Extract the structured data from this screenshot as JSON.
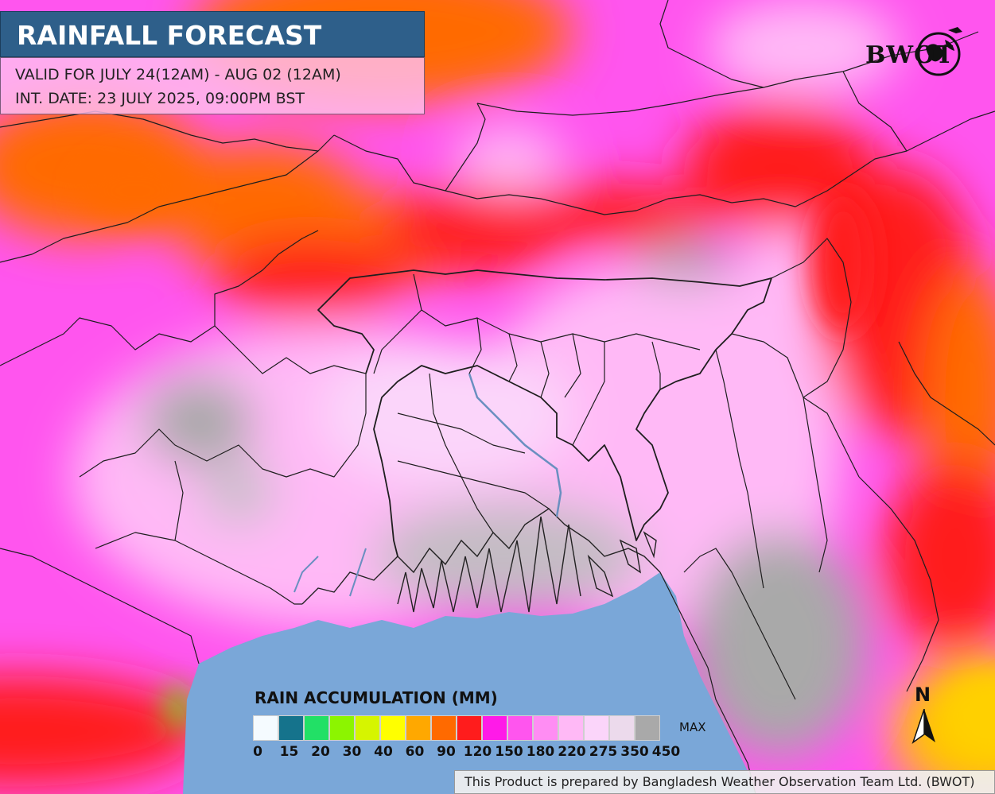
{
  "header": {
    "title": "RAINFALL FORECAST",
    "valid_for": "VALID FOR JULY 24(12AM) - AUG 02 (12AM)",
    "int_date": "INT. DATE: 23 JULY 2025, 09:00PM BST"
  },
  "logo": {
    "text": "BWOT",
    "icon": "globe-icon"
  },
  "legend": {
    "title": "RAIN ACCUMULATION (MM)",
    "max_label": "MAX",
    "colors": [
      "#f5fbff",
      "#15738c",
      "#22e066",
      "#8cf500",
      "#d6f500",
      "#ffff00",
      "#ffa800",
      "#ff6a00",
      "#ff1c1c",
      "#ff1ae8",
      "#ff55ee",
      "#ff8df3",
      "#ffb9f6",
      "#fbd5fa",
      "#ecdaec",
      "#a9a9a9"
    ],
    "ticks": [
      "0",
      "15",
      "20",
      "30",
      "40",
      "60",
      "90",
      "120",
      "150",
      "180",
      "220",
      "275",
      "350",
      "450"
    ]
  },
  "north_arrow": {
    "letter": "N",
    "icon": "north-arrow-icon"
  },
  "footer": {
    "credit": "This Product is prepared by Bangladesh Weather Observation Team Ltd. (BWOT)"
  },
  "colors": {
    "sea": "#7aa7d8",
    "title_bg": "#2e5f8a",
    "heavy_rain_red": "#ff1c1c",
    "orange": "#ff6a00",
    "magenta": "#ff1ae8",
    "light_pink": "#ffb9f6",
    "grey_max": "#a9a9a9"
  }
}
